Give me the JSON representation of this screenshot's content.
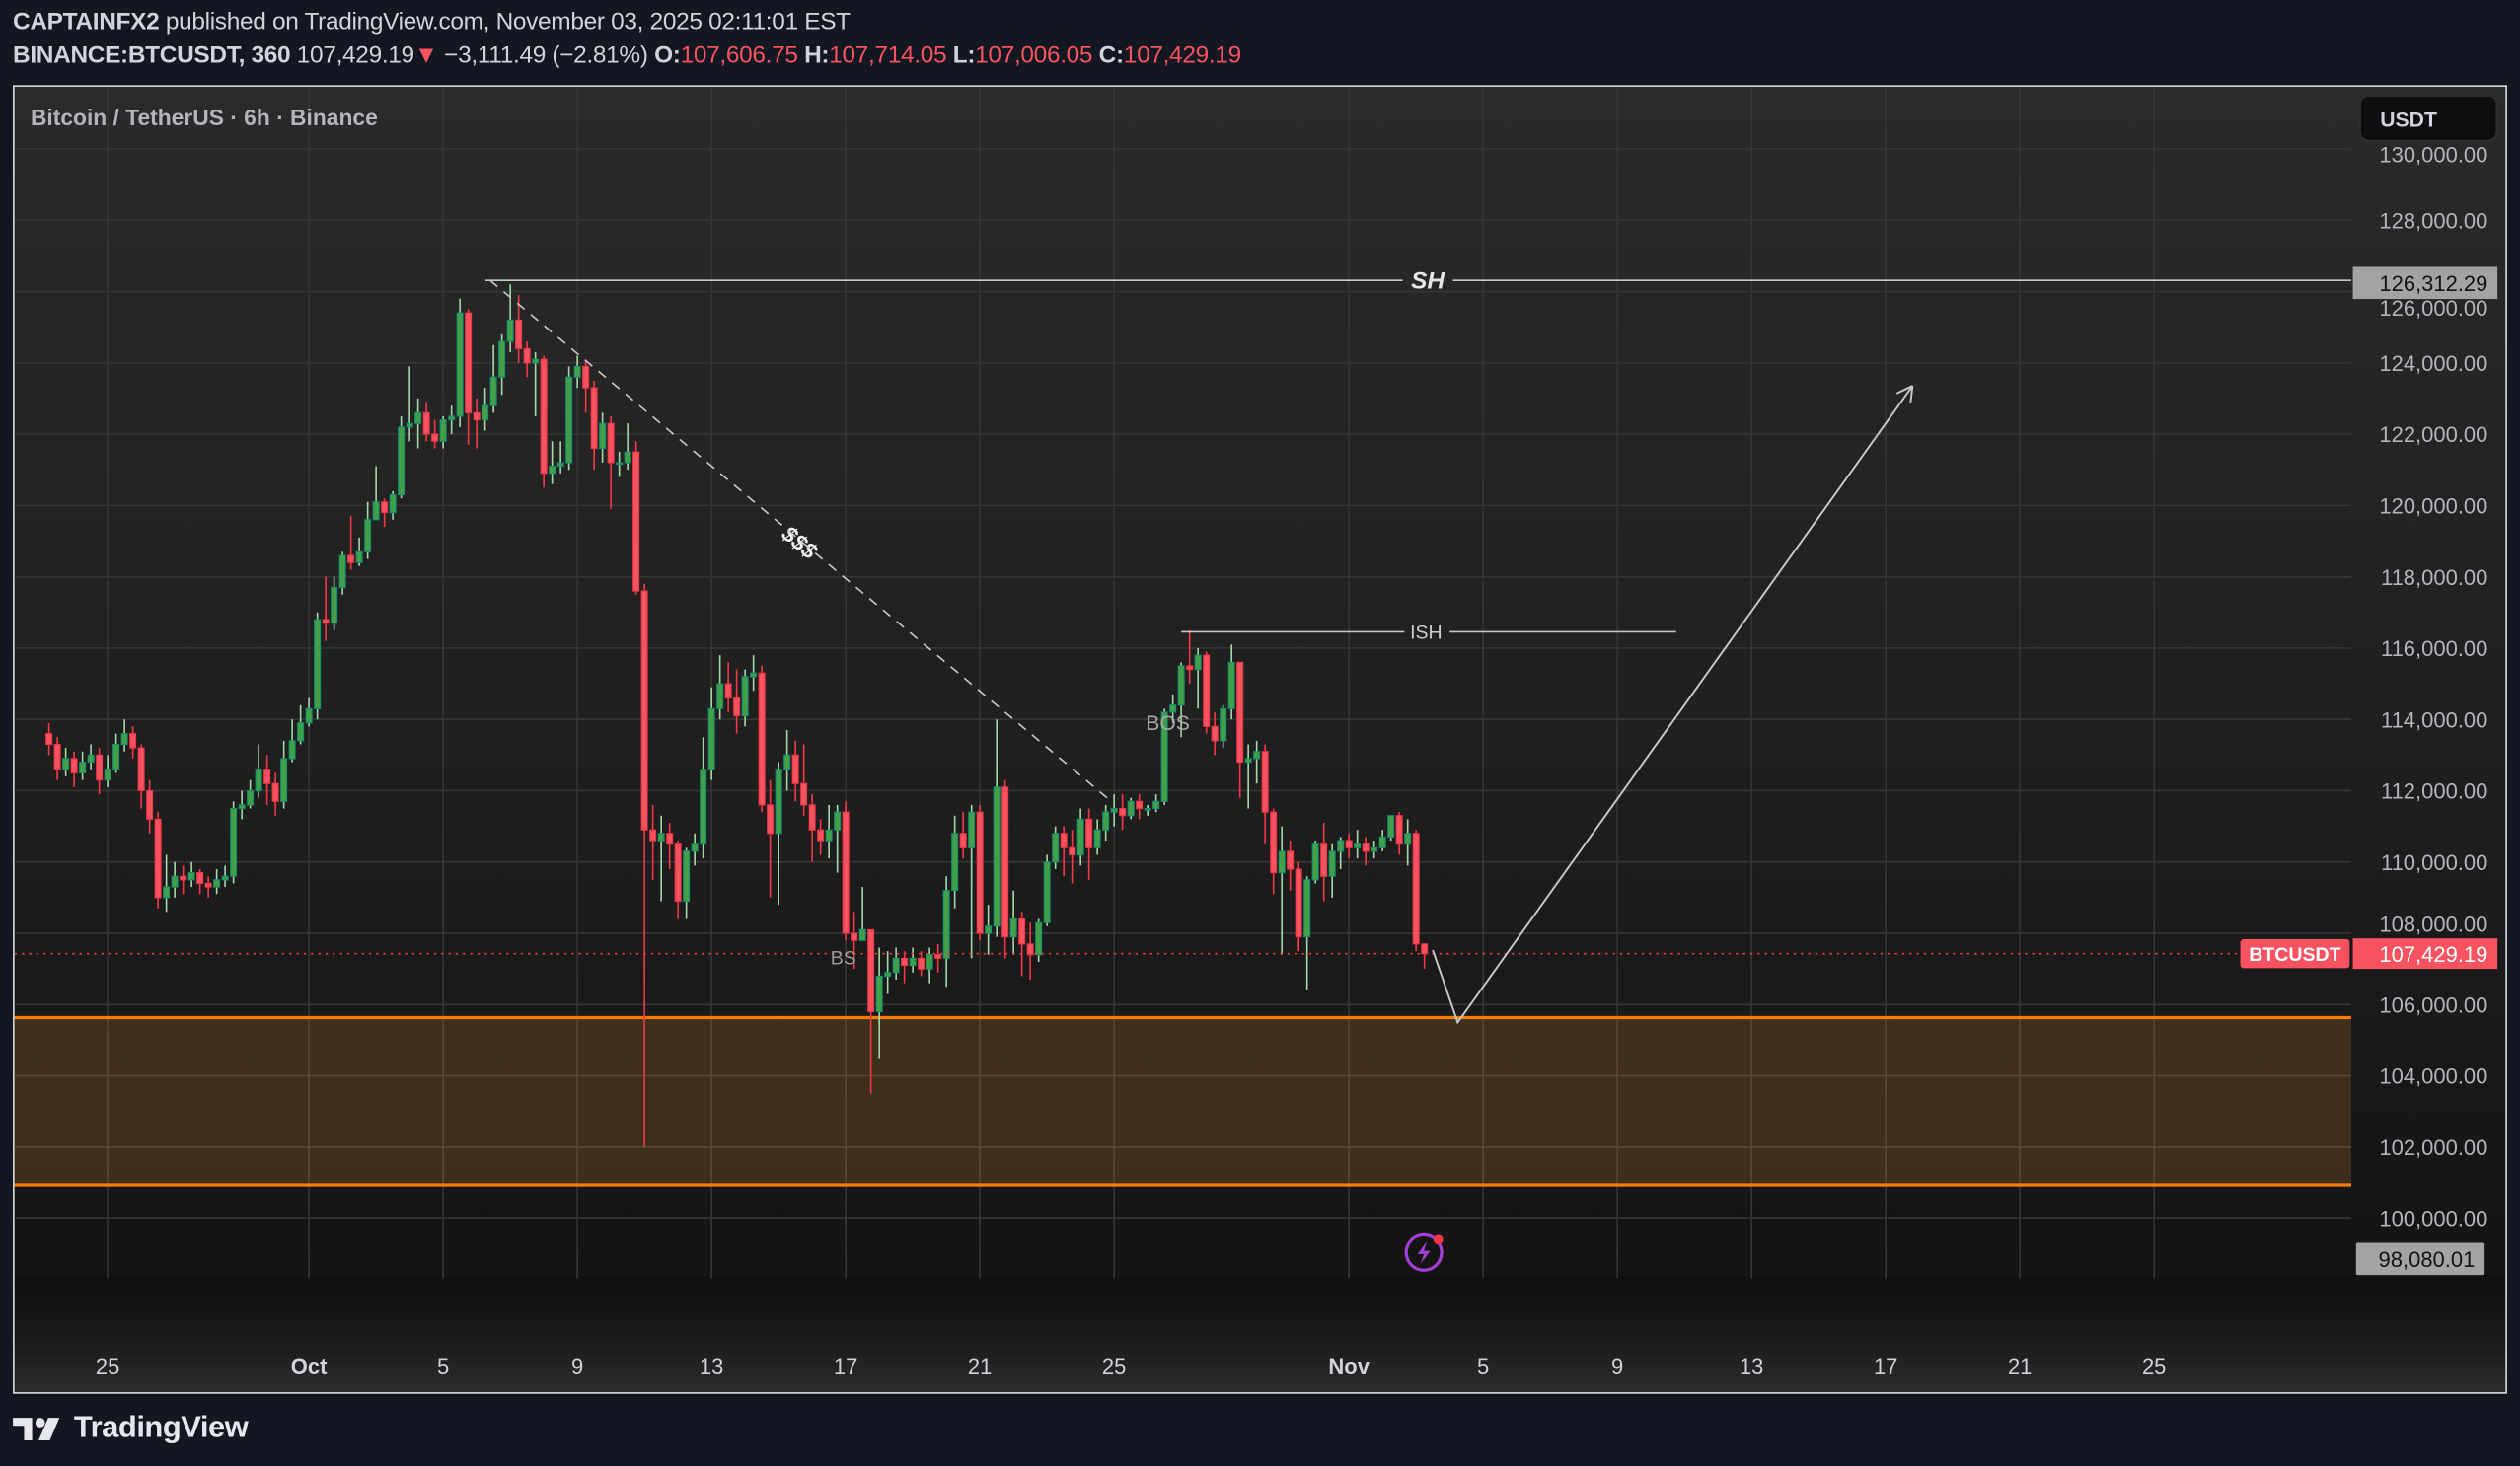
{
  "header": {
    "author": "CAPTAINFX2",
    "published": " published on TradingView.com, November 03, 2025 02:11:01 EST",
    "symbol": "BINANCE:BTCUSDT, 360",
    "last": "107,429.19",
    "change_icon": "triangle-down",
    "change": " −3,111.49 (−2.81%)",
    "o_label": "O:",
    "o": "107,606.75",
    "h_label": "H:",
    "h": "107,714.05",
    "l_label": "L:",
    "l": "107,006.05",
    "c_label": "C:",
    "c": "107,429.19"
  },
  "chart": {
    "title": "Bitcoin / TetherUS · 6h · Binance",
    "currency_button": "USDT",
    "price_tag_symbol": "BTCUSDT",
    "price_tag_value": "107,429.19",
    "sh_tag": "126,312.29",
    "low_tag": "98,080.01",
    "alert_icon": "lightning-icon"
  },
  "annotations": {
    "sh": "SH",
    "ish": "ISH",
    "liquidity": "$$$",
    "bos": "BOS",
    "bs": "BS"
  },
  "footer": {
    "logo": "TradingView"
  },
  "colors": {
    "up_body": "#43a047",
    "up_border": "#13906f",
    "up_wick": "#a5d6a7",
    "down_body": "#f7525f",
    "down_border": "#f23645",
    "down_wick": "#f23645",
    "zone_line": "#f57c00",
    "price_line": "#f23645",
    "drawing": "#c8c8c8"
  },
  "chart_data": {
    "type": "candlestick",
    "symbol": "BINANCE:BTCUSDT",
    "interval": "6h",
    "grid": true,
    "y_ticks": [
      100000,
      102000,
      104000,
      106000,
      108000,
      110000,
      112000,
      114000,
      116000,
      118000,
      120000,
      122000,
      124000,
      126000,
      128000,
      130000
    ],
    "x_ticks": [
      {
        "label": "25",
        "date": "2025-09-25",
        "bold": false
      },
      {
        "label": "Oct",
        "date": "2025-10-01",
        "bold": true
      },
      {
        "label": "5",
        "date": "2025-10-05",
        "bold": false
      },
      {
        "label": "9",
        "date": "2025-10-09",
        "bold": false
      },
      {
        "label": "13",
        "date": "2025-10-13",
        "bold": false
      },
      {
        "label": "17",
        "date": "2025-10-17",
        "bold": false
      },
      {
        "label": "21",
        "date": "2025-10-21",
        "bold": false
      },
      {
        "label": "25",
        "date": "2025-10-25",
        "bold": false
      },
      {
        "label": "Nov",
        "date": "2025-11-01",
        "bold": true
      },
      {
        "label": "5",
        "date": "2025-11-05",
        "bold": false
      },
      {
        "label": "9",
        "date": "2025-11-09",
        "bold": false
      },
      {
        "label": "13",
        "date": "2025-11-13",
        "bold": false
      },
      {
        "label": "17",
        "date": "2025-11-17",
        "bold": false
      },
      {
        "label": "21",
        "date": "2025-11-21",
        "bold": false
      },
      {
        "label": "25",
        "date": "2025-11-25",
        "bold": false
      }
    ],
    "levels": {
      "swing_high": 126312.29,
      "last_price": 107429.19,
      "visible_low": 98080.01
    },
    "open_first": 113600,
    "close": [
      113300,
      112600,
      112900,
      112500,
      112800,
      113000,
      112300,
      112600,
      113300,
      113600,
      113200,
      112000,
      111200,
      109000,
      109300,
      109600,
      109500,
      109700,
      109400,
      109300,
      109500,
      109600,
      111500,
      111600,
      112000,
      112600,
      112200,
      111700,
      112900,
      113400,
      113900,
      114300,
      116800,
      116700,
      117700,
      118600,
      118400,
      118700,
      119600,
      120100,
      119800,
      120300,
      122200,
      122300,
      122600,
      122000,
      121800,
      122400,
      122500,
      125400,
      122600,
      122400,
      122800,
      123600,
      124600,
      125200,
      124400,
      124000,
      124100,
      120900,
      121100,
      121200,
      123600,
      123900,
      123300,
      121600,
      122300,
      121200,
      121200,
      121500,
      117600,
      110900,
      110600,
      110800,
      110500,
      108900,
      110300,
      110500,
      112600,
      114300,
      115000,
      114600,
      114100,
      115200,
      115300,
      111600,
      110800,
      112600,
      113000,
      112200,
      111600,
      110900,
      110600,
      110900,
      111400,
      108000,
      107800,
      108100,
      105800,
      106800,
      106900,
      107300,
      107100,
      107300,
      107000,
      107400,
      107300,
      109200,
      110800,
      110400,
      111400,
      108000,
      108200,
      112100,
      107900,
      108400,
      107700,
      107400,
      108300,
      110000,
      110800,
      110400,
      110200,
      111200,
      110400,
      110900,
      111400,
      111500,
      111300,
      111700,
      111500,
      111500,
      111700,
      114200,
      114400,
      115500,
      115400,
      115800,
      113800,
      113400,
      114300,
      115600,
      112800,
      112900,
      113100,
      111400,
      109700,
      110300,
      109800,
      107900,
      109500,
      110500,
      109600,
      110300,
      110600,
      110400,
      110500,
      110300,
      110400,
      110700,
      111300,
      110500,
      110800,
      107700,
      107429.19
    ],
    "high": [
      113900,
      113500,
      113200,
      113100,
      113100,
      113300,
      113200,
      113000,
      113600,
      114000,
      113800,
      113300,
      112300,
      111400,
      110200,
      110000,
      109900,
      110000,
      109800,
      109600,
      109800,
      109900,
      111700,
      112000,
      112300,
      113300,
      113000,
      112500,
      113400,
      114000,
      114400,
      114600,
      117000,
      118000,
      118000,
      118700,
      119700,
      119100,
      120100,
      121100,
      120200,
      120400,
      122500,
      123900,
      123000,
      122900,
      122400,
      122500,
      122800,
      125800,
      125500,
      123000,
      123300,
      124500,
      124800,
      126200,
      125900,
      124600,
      124300,
      124200,
      121800,
      121800,
      123900,
      124200,
      124100,
      123500,
      122600,
      122500,
      121500,
      122300,
      121800,
      117800,
      111600,
      111300,
      111100,
      110600,
      110400,
      110800,
      113500,
      114900,
      115800,
      115600,
      115400,
      115400,
      115800,
      115500,
      112300,
      112800,
      113700,
      113400,
      113300,
      111900,
      111200,
      111600,
      111600,
      111700,
      108600,
      109300,
      108100,
      107600,
      107500,
      107600,
      107500,
      107600,
      107500,
      107600,
      107700,
      109600,
      111300,
      111400,
      111600,
      111600,
      108800,
      114000,
      112300,
      109200,
      108600,
      108300,
      108400,
      110200,
      111000,
      111000,
      110900,
      111500,
      111500,
      111200,
      111600,
      111900,
      111900,
      111800,
      111900,
      111600,
      111900,
      114300,
      114700,
      115600,
      116500,
      116000,
      115900,
      114200,
      114400,
      116100,
      115600,
      113300,
      113400,
      113300,
      111500,
      111000,
      110600,
      110000,
      109600,
      110600,
      111100,
      110500,
      110700,
      110800,
      110900,
      110700,
      110600,
      110900,
      111300,
      111400,
      111200,
      110900,
      107714.05
    ],
    "low": [
      113000,
      112300,
      112400,
      112100,
      112300,
      112600,
      111900,
      112100,
      112500,
      113100,
      112900,
      111500,
      110800,
      108700,
      108600,
      109000,
      109100,
      109300,
      109100,
      109000,
      109100,
      109300,
      109400,
      111200,
      111500,
      111800,
      111600,
      111300,
      111500,
      112800,
      113300,
      113800,
      114000,
      116200,
      116500,
      117500,
      118200,
      118300,
      118500,
      119800,
      119400,
      119600,
      120200,
      121800,
      121600,
      121800,
      121600,
      121600,
      122000,
      122200,
      121700,
      121600,
      122100,
      122600,
      123100,
      124300,
      124000,
      123600,
      122500,
      120500,
      120600,
      120900,
      121000,
      123300,
      122600,
      121000,
      121200,
      119900,
      120800,
      121000,
      117500,
      102000,
      109500,
      108900,
      109800,
      108400,
      108400,
      109900,
      110100,
      112300,
      114000,
      114200,
      113600,
      113800,
      114800,
      111400,
      109000,
      108800,
      112000,
      111700,
      111300,
      110000,
      110200,
      110100,
      109700,
      107800,
      107000,
      107900,
      103500,
      104500,
      106300,
      106700,
      106600,
      106900,
      106800,
      106600,
      106900,
      106500,
      108700,
      110100,
      107300,
      107800,
      107400,
      107900,
      107300,
      107400,
      106800,
      106700,
      107200,
      108200,
      109800,
      109600,
      109400,
      109900,
      109500,
      110200,
      110600,
      111000,
      110900,
      111200,
      111200,
      111300,
      111400,
      111600,
      113900,
      113500,
      115000,
      114300,
      113600,
      113000,
      113200,
      114000,
      111800,
      111500,
      112200,
      110500,
      109100,
      107400,
      109200,
      107500,
      106400,
      109400,
      108900,
      109000,
      109800,
      110100,
      110100,
      109900,
      110100,
      110300,
      110600,
      110200,
      109900,
      107500,
      107006.05
    ]
  }
}
